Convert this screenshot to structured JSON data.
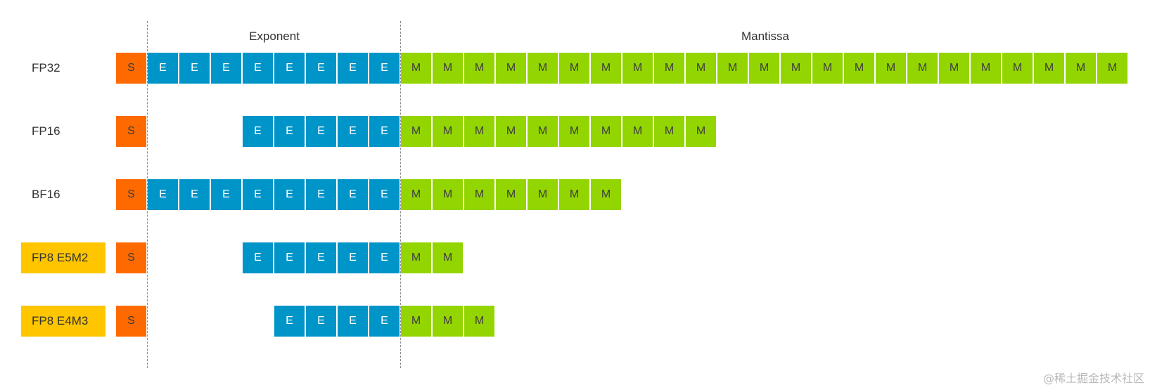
{
  "headers": {
    "exponent": "Exponent",
    "mantissa": "Mantissa"
  },
  "colors": {
    "sign": "#ff6a00",
    "exponent": "#0095c8",
    "mantissa": "#93d500",
    "highlight_label": "#ffc600"
  },
  "formats": [
    {
      "label": "FP32",
      "highlight": false,
      "sign_bits": 1,
      "exponent_bits": 8,
      "mantissa_bits": 23
    },
    {
      "label": "FP16",
      "highlight": false,
      "sign_bits": 1,
      "exponent_bits": 5,
      "mantissa_bits": 10
    },
    {
      "label": "BF16",
      "highlight": false,
      "sign_bits": 1,
      "exponent_bits": 8,
      "mantissa_bits": 7
    },
    {
      "label": "FP8 E5M2",
      "highlight": true,
      "sign_bits": 1,
      "exponent_bits": 5,
      "mantissa_bits": 2
    },
    {
      "label": "FP8 E4M3",
      "highlight": true,
      "sign_bits": 1,
      "exponent_bits": 4,
      "mantissa_bits": 3
    }
  ],
  "bit_glyphs": {
    "sign": "S",
    "exponent": "E",
    "mantissa": "M"
  },
  "watermark": "@稀土掘金技术社区"
}
